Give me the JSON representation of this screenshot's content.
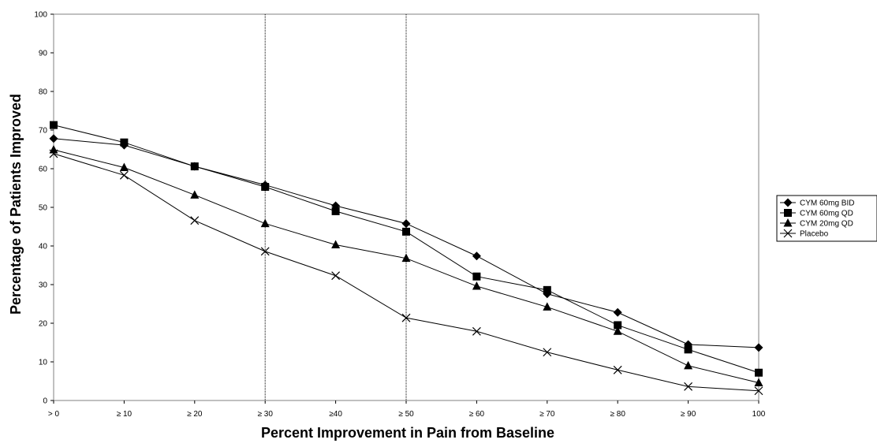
{
  "chart_data": {
    "type": "line",
    "title": "",
    "xlabel": "Percent Improvement in Pain from Baseline",
    "ylabel": "Percentage of Patients Improved",
    "categories": [
      "> 0",
      "≥ 10",
      "≥ 20",
      "≥ 30",
      "≥40",
      "≥ 50",
      "≥ 60",
      "≥ 70",
      "≥ 80",
      "≥ 90",
      "100"
    ],
    "ylim": [
      0,
      100
    ],
    "yticks": [
      "0",
      "10",
      "20",
      "30",
      "40",
      "50",
      "60",
      "70",
      "80",
      "90",
      "100"
    ],
    "ytick_values": [
      0,
      10,
      20,
      30,
      40,
      50,
      60,
      70,
      80,
      90,
      100
    ],
    "grid": false,
    "reference_lines_at": [
      "≥ 30",
      "≥ 50"
    ],
    "legend_position": "right",
    "series": [
      {
        "name": "CYM 60mg BID",
        "marker": "diamond",
        "values": [
          67.8,
          66.1,
          60.6,
          55.8,
          50.4,
          45.8,
          37.4,
          27.6,
          22.8,
          14.5,
          13.7
        ]
      },
      {
        "name": "CYM 60mg QD",
        "marker": "square",
        "values": [
          71.3,
          66.8,
          60.6,
          55.3,
          49.0,
          43.7,
          32.1,
          28.6,
          19.5,
          13.2,
          7.2
        ]
      },
      {
        "name": "CYM 20mg QD",
        "marker": "triangle",
        "values": [
          64.9,
          60.3,
          53.2,
          45.8,
          40.3,
          36.8,
          29.6,
          24.2,
          17.9,
          9.0,
          4.6
        ]
      },
      {
        "name": "Placebo",
        "marker": "x",
        "values": [
          63.9,
          58.3,
          46.6,
          38.6,
          32.3,
          21.4,
          17.9,
          12.5,
          7.9,
          3.6,
          2.5
        ]
      }
    ]
  }
}
